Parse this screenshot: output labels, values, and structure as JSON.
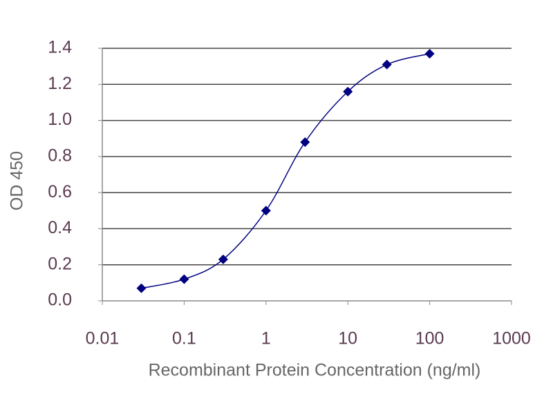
{
  "chart_data": {
    "type": "line",
    "x_label": "Recombinant Protein Concentration (ng/ml)",
    "y_label": "OD 450",
    "x": [
      0.03,
      0.1,
      0.3,
      1,
      3,
      10,
      30,
      100
    ],
    "values": [
      0.07,
      0.12,
      0.23,
      0.5,
      0.88,
      1.16,
      1.31,
      1.37
    ],
    "color": "#000080",
    "log_x": true,
    "xlim": [
      0.01,
      1000
    ],
    "xticks": [
      0.01,
      0.1,
      1,
      10,
      100,
      1000
    ],
    "ylim": [
      0,
      1.4
    ],
    "yticks": [
      {
        "value": 0,
        "label": "0.0"
      },
      0.2,
      0.4,
      0.6,
      0.8,
      {
        "value": 1,
        "label": "1.0"
      },
      1.2,
      1.4
    ],
    "grid": true
  }
}
